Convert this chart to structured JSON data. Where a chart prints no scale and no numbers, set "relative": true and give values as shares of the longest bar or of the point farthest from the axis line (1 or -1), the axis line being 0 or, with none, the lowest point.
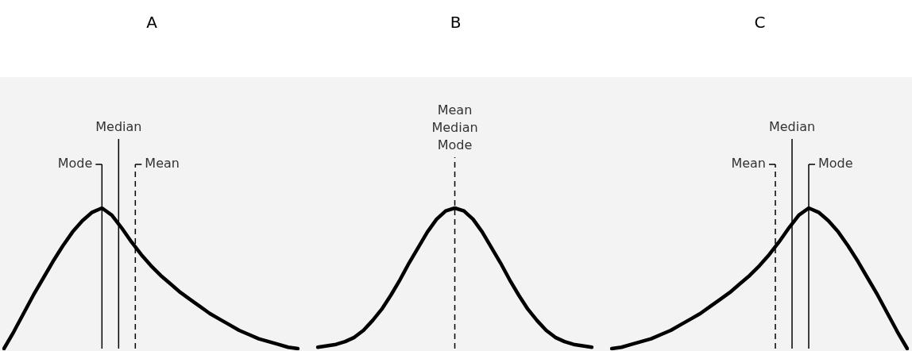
{
  "chart_data": [
    {
      "type": "line",
      "title": "A",
      "relative": true,
      "categories": [
        null,
        null,
        null,
        null,
        null,
        null,
        null,
        null,
        null,
        null,
        null,
        null,
        null,
        null,
        null,
        null,
        null,
        null,
        null,
        null,
        null,
        null,
        null,
        null,
        null,
        null,
        null,
        null,
        null,
        null,
        null
      ],
      "series": [
        {
          "color": "#000000",
          "values": [
            0,
            0.12,
            0.25,
            0.38,
            0.5,
            0.62,
            0.73,
            0.83,
            0.91,
            0.97,
            1.0,
            0.95,
            0.86,
            0.76,
            0.67,
            0.59,
            0.52,
            0.46,
            0.4,
            0.35,
            0.3,
            0.25,
            0.21,
            0.17,
            0.13,
            0.1,
            0.07,
            0.05,
            0.03,
            0.01,
            0
          ]
        }
      ],
      "annotations": [
        "Mode",
        "Median",
        "Mean"
      ]
    },
    {
      "type": "line",
      "title": "B",
      "relative": true,
      "categories": [
        null,
        null,
        null,
        null,
        null,
        null,
        null,
        null,
        null,
        null,
        null,
        null,
        null,
        null,
        null,
        null,
        null,
        null,
        null,
        null,
        null,
        null,
        null,
        null,
        null,
        null,
        null,
        null,
        null,
        null,
        null
      ],
      "series": [
        {
          "color": "#000000",
          "values": [
            0.01,
            0.02,
            0.03,
            0.05,
            0.08,
            0.13,
            0.2,
            0.28,
            0.38,
            0.49,
            0.61,
            0.72,
            0.83,
            0.92,
            0.98,
            1.0,
            0.98,
            0.92,
            0.83,
            0.72,
            0.61,
            0.49,
            0.38,
            0.28,
            0.2,
            0.13,
            0.08,
            0.05,
            0.03,
            0.02,
            0.01
          ]
        }
      ],
      "annotations": [
        "Mode",
        "Median",
        "Mean"
      ]
    },
    {
      "type": "line",
      "title": "C",
      "relative": true,
      "categories": [
        null,
        null,
        null,
        null,
        null,
        null,
        null,
        null,
        null,
        null,
        null,
        null,
        null,
        null,
        null,
        null,
        null,
        null,
        null,
        null,
        null,
        null,
        null,
        null,
        null,
        null,
        null,
        null,
        null,
        null,
        null
      ],
      "series": [
        {
          "color": "#000000",
          "values": [
            0,
            0.01,
            0.03,
            0.05,
            0.07,
            0.1,
            0.13,
            0.17,
            0.21,
            0.25,
            0.3,
            0.35,
            0.4,
            0.46,
            0.52,
            0.59,
            0.67,
            0.76,
            0.86,
            0.95,
            1.0,
            0.97,
            0.91,
            0.83,
            0.73,
            0.62,
            0.5,
            0.38,
            0.25,
            0.12,
            0
          ]
        }
      ],
      "annotations": [
        "Mode",
        "Median",
        "Mean"
      ]
    }
  ]
}
